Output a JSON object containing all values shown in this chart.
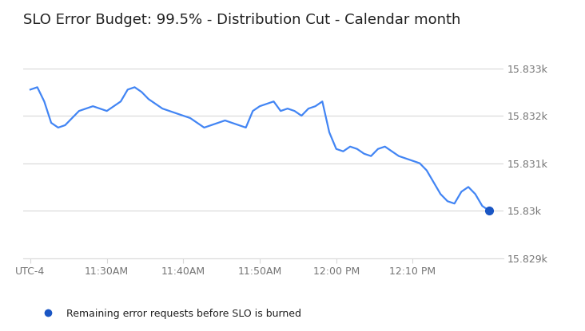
{
  "title": "SLO Error Budget: 99.5% - Distribution Cut - Calendar month",
  "title_fontsize": 13,
  "line_color": "#4285F4",
  "dot_color": "#1a56c4",
  "background_color": "#ffffff",
  "grid_color": "#d8d8d8",
  "tick_color": "#757575",
  "legend_label": "Remaining error requests before SLO is burned",
  "ylim_min": 15829,
  "ylim_max": 15833.6,
  "ytick_vals": [
    15829,
    15830,
    15831,
    15832,
    15833
  ],
  "ytick_labels": [
    "15.829k",
    "15.83k",
    "15.831k",
    "15.832k",
    "15.833k"
  ],
  "xtick_labels": [
    "UTC-4",
    "11:30AM",
    "11:40AM",
    "11:50AM",
    "12:00 PM",
    "12:10 PM"
  ],
  "xtick_positions": [
    0,
    11,
    22,
    33,
    44,
    55
  ],
  "xlim_min": -1,
  "xlim_max": 68,
  "x_values": [
    0,
    1,
    2,
    3,
    4,
    5,
    6,
    7,
    8,
    9,
    10,
    11,
    12,
    13,
    14,
    15,
    16,
    17,
    18,
    19,
    20,
    21,
    22,
    23,
    24,
    25,
    26,
    27,
    28,
    29,
    30,
    31,
    32,
    33,
    34,
    35,
    36,
    37,
    38,
    39,
    40,
    41,
    42,
    43,
    44,
    45,
    46,
    47,
    48,
    49,
    50,
    51,
    52,
    53,
    54,
    55,
    56,
    57,
    58,
    59,
    60,
    61,
    62,
    63,
    64,
    65,
    66
  ],
  "y_values": [
    15832.55,
    15832.6,
    15832.3,
    15831.85,
    15831.75,
    15831.8,
    15831.95,
    15832.1,
    15832.15,
    15832.2,
    15832.15,
    15832.1,
    15832.2,
    15832.3,
    15832.55,
    15832.6,
    15832.5,
    15832.35,
    15832.25,
    15832.15,
    15832.1,
    15832.05,
    15832.0,
    15831.95,
    15831.85,
    15831.75,
    15831.8,
    15831.85,
    15831.9,
    15831.85,
    15831.8,
    15831.75,
    15832.1,
    15832.2,
    15832.25,
    15832.3,
    15832.1,
    15832.15,
    15832.1,
    15832.0,
    15832.15,
    15832.2,
    15832.3,
    15831.65,
    15831.3,
    15831.25,
    15831.35,
    15831.3,
    15831.2,
    15831.15,
    15831.3,
    15831.35,
    15831.25,
    15831.15,
    15831.1,
    15831.05,
    15831.0,
    15830.85,
    15830.6,
    15830.35,
    15830.2,
    15830.15,
    15830.4,
    15830.5,
    15830.35,
    15830.1,
    15830.0
  ]
}
